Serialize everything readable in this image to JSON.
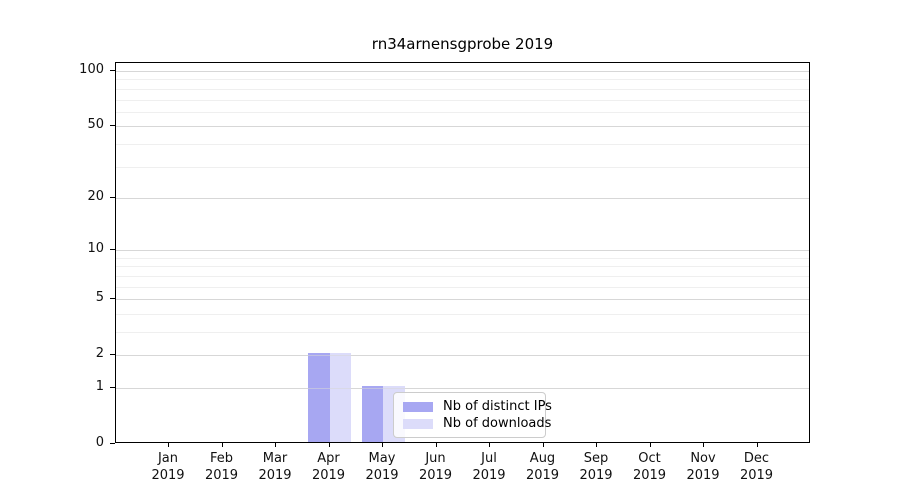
{
  "title": "rn34arnensgprobe 2019",
  "chart_data": {
    "type": "bar",
    "title": "rn34arnensgprobe 2019",
    "categories": [
      "Jan",
      "Feb",
      "Mar",
      "Apr",
      "May",
      "Jun",
      "Jul",
      "Aug",
      "Sep",
      "Oct",
      "Nov",
      "Dec"
    ],
    "x_tick_year": "2019",
    "series": [
      {
        "name": "Nb of distinct IPs",
        "color": "#a7a7f2",
        "values": [
          0,
          0,
          0,
          2,
          1,
          0,
          0,
          0,
          0,
          0,
          0,
          0
        ]
      },
      {
        "name": "Nb of downloads",
        "color": "#dcdcfa",
        "values": [
          0,
          0,
          0,
          2,
          1,
          0,
          0,
          0,
          0,
          0,
          0,
          0
        ]
      }
    ],
    "y_ticks": [
      0,
      1,
      2,
      5,
      10,
      20,
      50,
      100
    ],
    "y_minor_ticks": [
      3,
      4,
      6,
      7,
      8,
      9,
      30,
      40,
      60,
      70,
      80,
      90
    ],
    "y_scale": "log10(1+v)",
    "ylim": [
      0,
      110
    ],
    "xlabel": "",
    "ylabel": "",
    "grid": "horizontal",
    "legend_position": "lower-center",
    "colors": {
      "grid_major": "#d7d7d7",
      "grid_minor": "#efefef",
      "axis": "#000000",
      "legend_border": "#cccccc"
    }
  }
}
